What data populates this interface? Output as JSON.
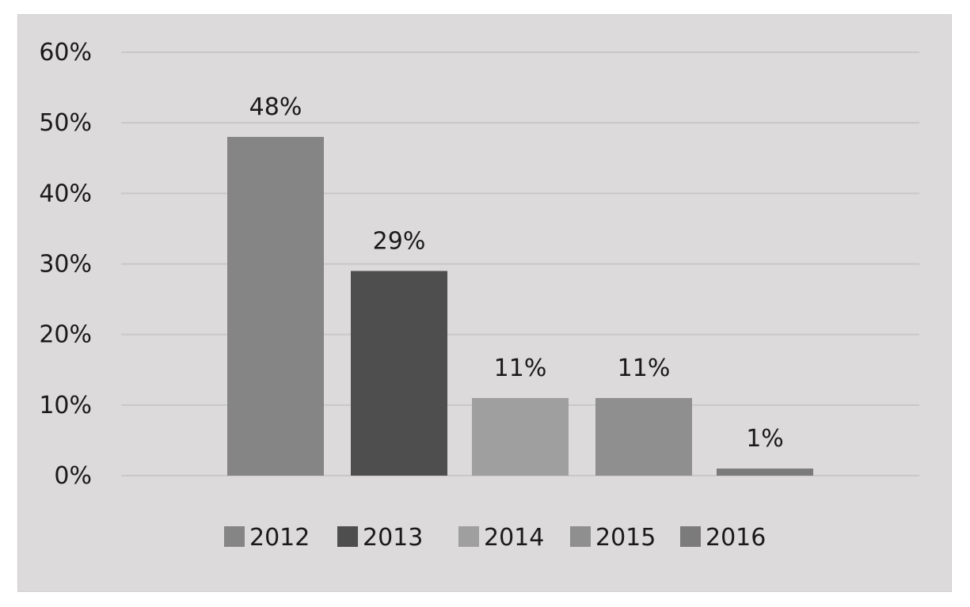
{
  "chart_data": {
    "type": "bar",
    "categories": [
      "2012",
      "2013",
      "2014",
      "2015",
      "2016"
    ],
    "values": [
      48,
      29,
      11,
      11,
      1
    ],
    "data_labels": [
      "48%",
      "29%",
      "11%",
      "11%",
      "1%"
    ],
    "colors": [
      "#858585",
      "#4e4e4e",
      "#9f9f9f",
      "#8f8f8f",
      "#7b7b7b"
    ],
    "y_ticks": [
      0,
      10,
      20,
      30,
      40,
      50,
      60
    ],
    "y_tick_labels": [
      "0%",
      "10%",
      "20%",
      "30%",
      "40%",
      "50%",
      "60%"
    ],
    "ylim": [
      0,
      60
    ],
    "grid": true,
    "legend_position": "bottom",
    "legend_entries": [
      "2012",
      "2013",
      "2014",
      "2015",
      "2016"
    ],
    "title": "",
    "xlabel": "",
    "ylabel": ""
  }
}
